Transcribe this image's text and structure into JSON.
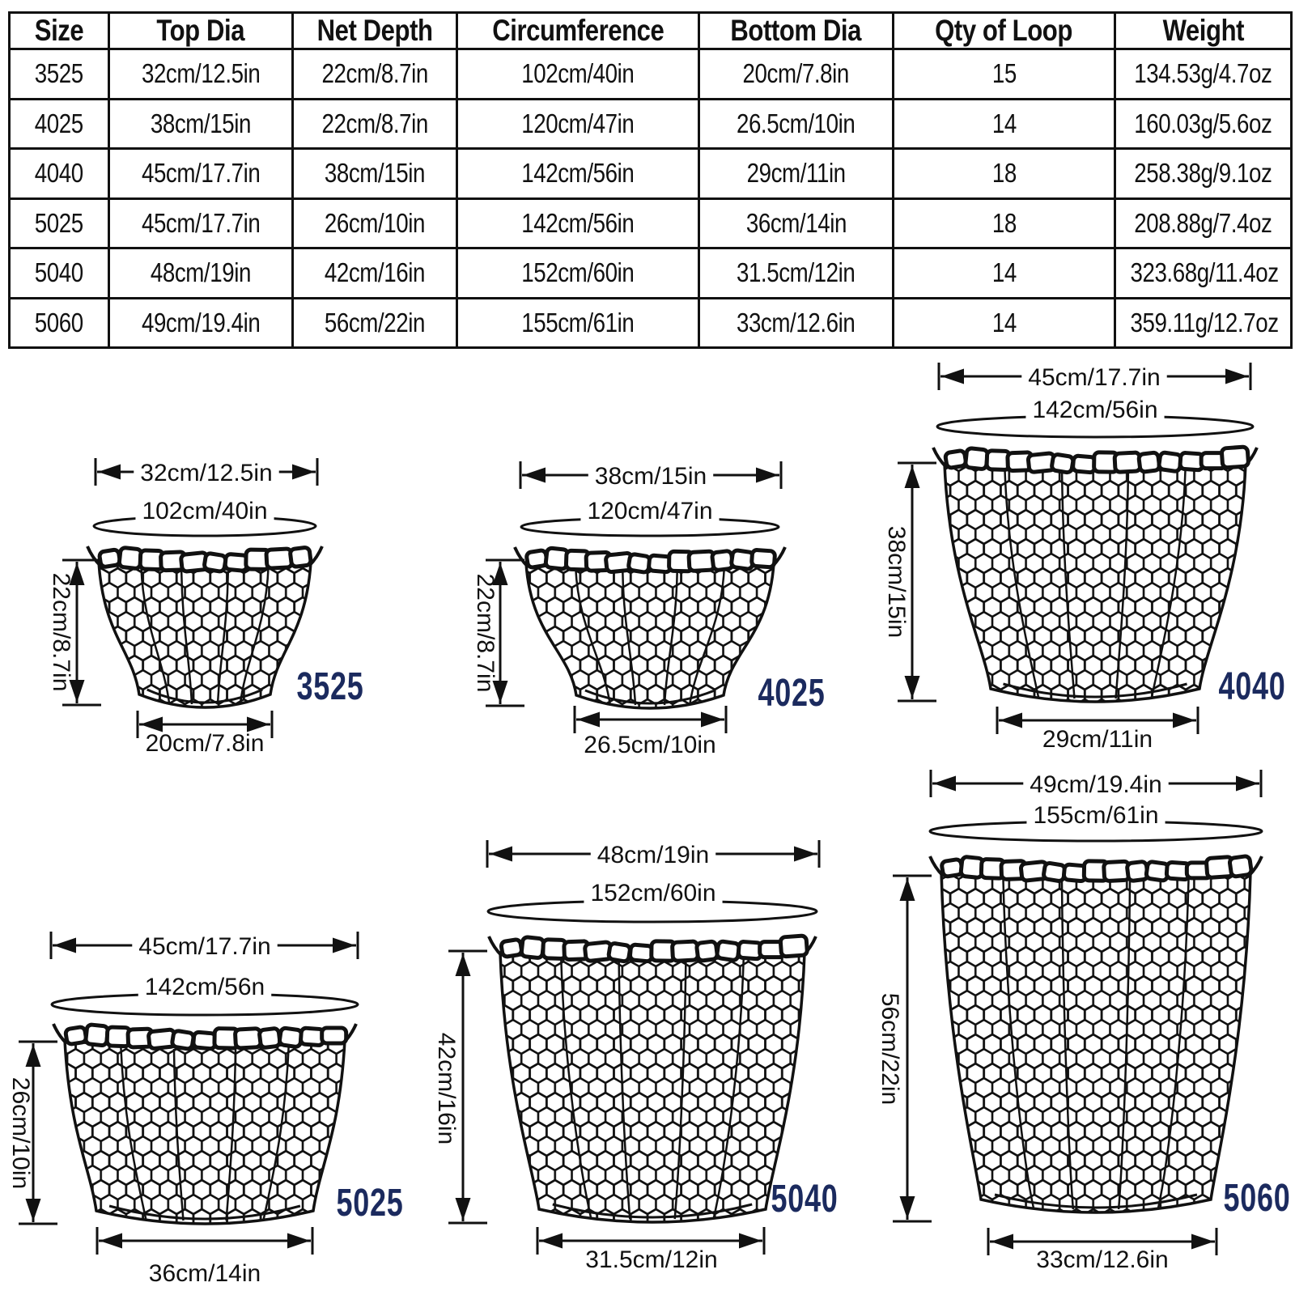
{
  "table": {
    "headers": [
      "Size",
      "Top Dia",
      "Net Depth",
      "Circumference",
      "Bottom Dia",
      "Qty of Loop",
      "Weight"
    ],
    "rows": [
      [
        "3525",
        "32cm/12.5in",
        "22cm/8.7in",
        "102cm/40in",
        "20cm/7.8in",
        "15",
        "134.53g/4.7oz"
      ],
      [
        "4025",
        "38cm/15in",
        "22cm/8.7in",
        "120cm/47in",
        "26.5cm/10in",
        "14",
        "160.03g/5.6oz"
      ],
      [
        "4040",
        "45cm/17.7in",
        "38cm/15in",
        "142cm/56in",
        "29cm/11in",
        "18",
        "258.38g/9.1oz"
      ],
      [
        "5025",
        "45cm/17.7in",
        "26cm/10in",
        "142cm/56in",
        "36cm/14in",
        "18",
        "208.88g/7.4oz"
      ],
      [
        "5040",
        "48cm/19in",
        "42cm/16in",
        "152cm/60in",
        "31.5cm/12in",
        "14",
        "323.68g/11.4oz"
      ],
      [
        "5060",
        "49cm/19.4in",
        "56cm/22in",
        "155cm/61in",
        "33cm/12.6in",
        "14",
        "359.11g/12.7oz"
      ]
    ]
  },
  "nets": [
    {
      "size": "3525",
      "top_dia": "32cm/12.5in",
      "circumference": "102cm/40in",
      "net_depth": "22cm/8.7in",
      "bottom_dia": "20cm/7.8in"
    },
    {
      "size": "4025",
      "top_dia": "38cm/15in",
      "circumference": "120cm/47in",
      "net_depth": "22cm/8.7in",
      "bottom_dia": "26.5cm/10in"
    },
    {
      "size": "4040",
      "top_dia": "45cm/17.7in",
      "circumference": "142cm/56in",
      "net_depth": "38cm/15in",
      "bottom_dia": "29cm/11in"
    },
    {
      "size": "5025",
      "top_dia": "45cm/17.7in",
      "circumference": "142cm/56n",
      "net_depth": "26cm/10in",
      "bottom_dia": "36cm/14in"
    },
    {
      "size": "5040",
      "top_dia": "48cm/19in",
      "circumference": "152cm/60in",
      "net_depth": "42cm/16in",
      "bottom_dia": "31.5cm/12in"
    },
    {
      "size": "5060",
      "top_dia": "49cm/19.4in",
      "circumference": "155cm/61in",
      "net_depth": "56cm/22in",
      "bottom_dia": "33cm/12.6in"
    }
  ],
  "colors": {
    "size_code_navy": "#1b2a5e",
    "line_black": "#111111",
    "background": "#ffffff"
  }
}
